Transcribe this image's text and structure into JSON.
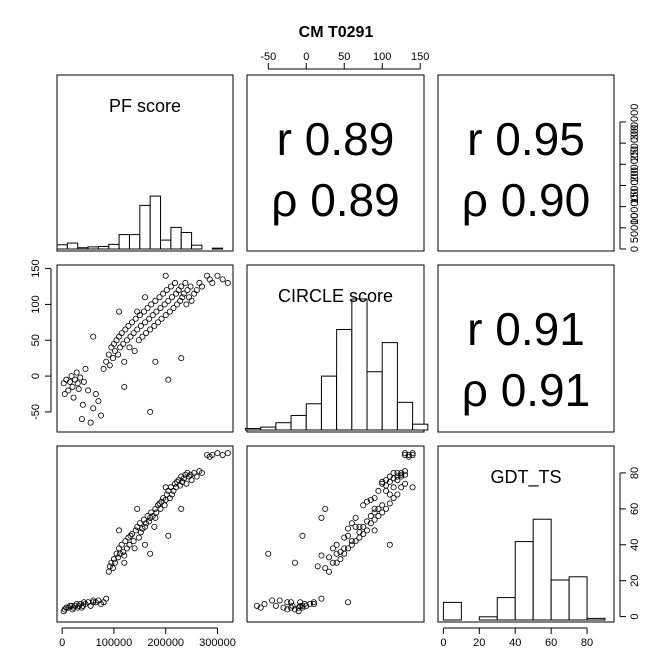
{
  "chart_data": {
    "type": "scatter",
    "title": "CM T0291",
    "variables": [
      "PF score",
      "CIRCLE score",
      "GDT_TS"
    ],
    "axis_ticks": {
      "PF score": [
        0,
        100000,
        200000,
        300000
      ],
      "CIRCLE score": [
        -50,
        0,
        50,
        100,
        150
      ],
      "GDT_TS": [
        0,
        20,
        40,
        60,
        80
      ]
    },
    "axis_ranges": {
      "PF score": [
        -10000,
        330000
      ],
      "CIRCLE score": [
        -78,
        155
      ],
      "GDT_TS": [
        -3,
        95
      ]
    },
    "histograms": [
      {
        "variable": "PF score",
        "edges": [
          -10000,
          10000,
          30000,
          50000,
          70000,
          90000,
          110000,
          130000,
          150000,
          170000,
          190000,
          210000,
          230000,
          250000,
          270000,
          290000,
          310000,
          330000
        ],
        "counts": [
          10000,
          14000,
          3000,
          5000,
          6000,
          11000,
          34000,
          34000,
          103000,
          125000,
          21000,
          51000,
          39000,
          9000,
          0,
          2000,
          0
        ],
        "ylim": [
          0,
          340000
        ],
        "ticks": [
          0,
          50000,
          100000,
          150000,
          200000,
          250000,
          300000
        ]
      },
      {
        "variable": "CIRCLE score",
        "edges": [
          -80,
          -60,
          -40,
          -20,
          0,
          20,
          40,
          60,
          80,
          100,
          120,
          140,
          160
        ],
        "counts": [
          1,
          2,
          5,
          10,
          18,
          37,
          69,
          90,
          40,
          60,
          19,
          4
        ],
        "ylim": null,
        "ticks": []
      },
      {
        "variable": "GDT_TS",
        "edges": [
          0,
          10,
          20,
          30,
          40,
          50,
          60,
          70,
          80,
          90
        ],
        "counts": [
          11,
          0,
          2,
          14,
          49,
          63,
          25,
          27,
          1
        ],
        "ylim": [
          0,
          90
        ],
        "ticks": [
          0,
          20,
          40,
          60,
          80
        ]
      }
    ],
    "correlations": [
      {
        "pair": [
          "PF score",
          "CIRCLE score"
        ],
        "r": "r 0.89",
        "rho": "ρ 0.89"
      },
      {
        "pair": [
          "PF score",
          "GDT_TS"
        ],
        "r": "r 0.95",
        "rho": "ρ 0.90"
      },
      {
        "pair": [
          "CIRCLE score",
          "GDT_TS"
        ],
        "r": "r 0.91",
        "rho": "ρ 0.91"
      }
    ],
    "points": [
      [
        3000,
        -10,
        3
      ],
      [
        5000,
        -25,
        4
      ],
      [
        8000,
        -5,
        5
      ],
      [
        12000,
        -20,
        5
      ],
      [
        15000,
        -8,
        6
      ],
      [
        18000,
        0,
        6
      ],
      [
        20000,
        -15,
        4
      ],
      [
        22000,
        -30,
        5
      ],
      [
        25000,
        -5,
        6
      ],
      [
        28000,
        5,
        7
      ],
      [
        30000,
        -10,
        5
      ],
      [
        32000,
        -18,
        6
      ],
      [
        35000,
        -2,
        7
      ],
      [
        38000,
        -60,
        5
      ],
      [
        40000,
        -40,
        6
      ],
      [
        42000,
        -8,
        8
      ],
      [
        45000,
        10,
        7
      ],
      [
        50000,
        -20,
        8
      ],
      [
        55000,
        -65,
        6
      ],
      [
        60000,
        -45,
        9
      ],
      [
        65000,
        -25,
        8
      ],
      [
        70000,
        -35,
        9
      ],
      [
        75000,
        -55,
        7
      ],
      [
        80000,
        10,
        8
      ],
      [
        85000,
        20,
        10
      ],
      [
        90000,
        30,
        25
      ],
      [
        92000,
        15,
        28
      ],
      [
        95000,
        40,
        30
      ],
      [
        98000,
        25,
        27
      ],
      [
        100000,
        45,
        32
      ],
      [
        102000,
        35,
        30
      ],
      [
        105000,
        50,
        35
      ],
      [
        108000,
        30,
        33
      ],
      [
        110000,
        55,
        38
      ],
      [
        112000,
        40,
        35
      ],
      [
        115000,
        60,
        40
      ],
      [
        118000,
        45,
        36
      ],
      [
        120000,
        20,
        34
      ],
      [
        122000,
        65,
        42
      ],
      [
        125000,
        50,
        38
      ],
      [
        128000,
        70,
        44
      ],
      [
        130000,
        40,
        40
      ],
      [
        132000,
        55,
        45
      ],
      [
        135000,
        75,
        46
      ],
      [
        138000,
        60,
        42
      ],
      [
        140000,
        35,
        38
      ],
      [
        142000,
        80,
        48
      ],
      [
        145000,
        65,
        50
      ],
      [
        148000,
        50,
        44
      ],
      [
        150000,
        85,
        52
      ],
      [
        152000,
        70,
        47
      ],
      [
        155000,
        55,
        49
      ],
      [
        158000,
        90,
        54
      ],
      [
        160000,
        75,
        50
      ],
      [
        162000,
        60,
        52
      ],
      [
        165000,
        95,
        56
      ],
      [
        168000,
        80,
        53
      ],
      [
        170000,
        65,
        55
      ],
      [
        172000,
        100,
        58
      ],
      [
        175000,
        85,
        56
      ],
      [
        178000,
        70,
        50
      ],
      [
        180000,
        105,
        60
      ],
      [
        182000,
        90,
        58
      ],
      [
        185000,
        75,
        62
      ],
      [
        188000,
        110,
        63
      ],
      [
        190000,
        95,
        60
      ],
      [
        192000,
        80,
        64
      ],
      [
        195000,
        115,
        66
      ],
      [
        198000,
        100,
        62
      ],
      [
        200000,
        85,
        65
      ],
      [
        202000,
        120,
        68
      ],
      [
        205000,
        105,
        70
      ],
      [
        208000,
        90,
        66
      ],
      [
        210000,
        125,
        72
      ],
      [
        212000,
        110,
        68
      ],
      [
        215000,
        95,
        70
      ],
      [
        218000,
        130,
        74
      ],
      [
        220000,
        115,
        72
      ],
      [
        222000,
        100,
        75
      ],
      [
        225000,
        120,
        76
      ],
      [
        228000,
        105,
        73
      ],
      [
        230000,
        125,
        78
      ],
      [
        232000,
        110,
        75
      ],
      [
        235000,
        115,
        77
      ],
      [
        238000,
        130,
        79
      ],
      [
        240000,
        100,
        74
      ],
      [
        242000,
        120,
        80
      ],
      [
        245000,
        110,
        78
      ],
      [
        248000,
        125,
        79
      ],
      [
        250000,
        105,
        76
      ],
      [
        255000,
        115,
        80
      ],
      [
        260000,
        120,
        78
      ],
      [
        265000,
        130,
        81
      ],
      [
        270000,
        125,
        80
      ],
      [
        280000,
        140,
        90
      ],
      [
        285000,
        135,
        89
      ],
      [
        290000,
        130,
        90
      ],
      [
        300000,
        140,
        91
      ],
      [
        310000,
        135,
        90
      ],
      [
        320000,
        130,
        91
      ],
      [
        60000,
        55,
        8
      ],
      [
        120000,
        -15,
        30
      ],
      [
        160000,
        110,
        40
      ],
      [
        180000,
        20,
        55
      ],
      [
        205000,
        -5,
        45
      ],
      [
        230000,
        25,
        60
      ],
      [
        170000,
        -50,
        35
      ],
      [
        145000,
        90,
        60
      ],
      [
        110000,
        90,
        48
      ],
      [
        200000,
        140,
        72
      ]
    ]
  }
}
